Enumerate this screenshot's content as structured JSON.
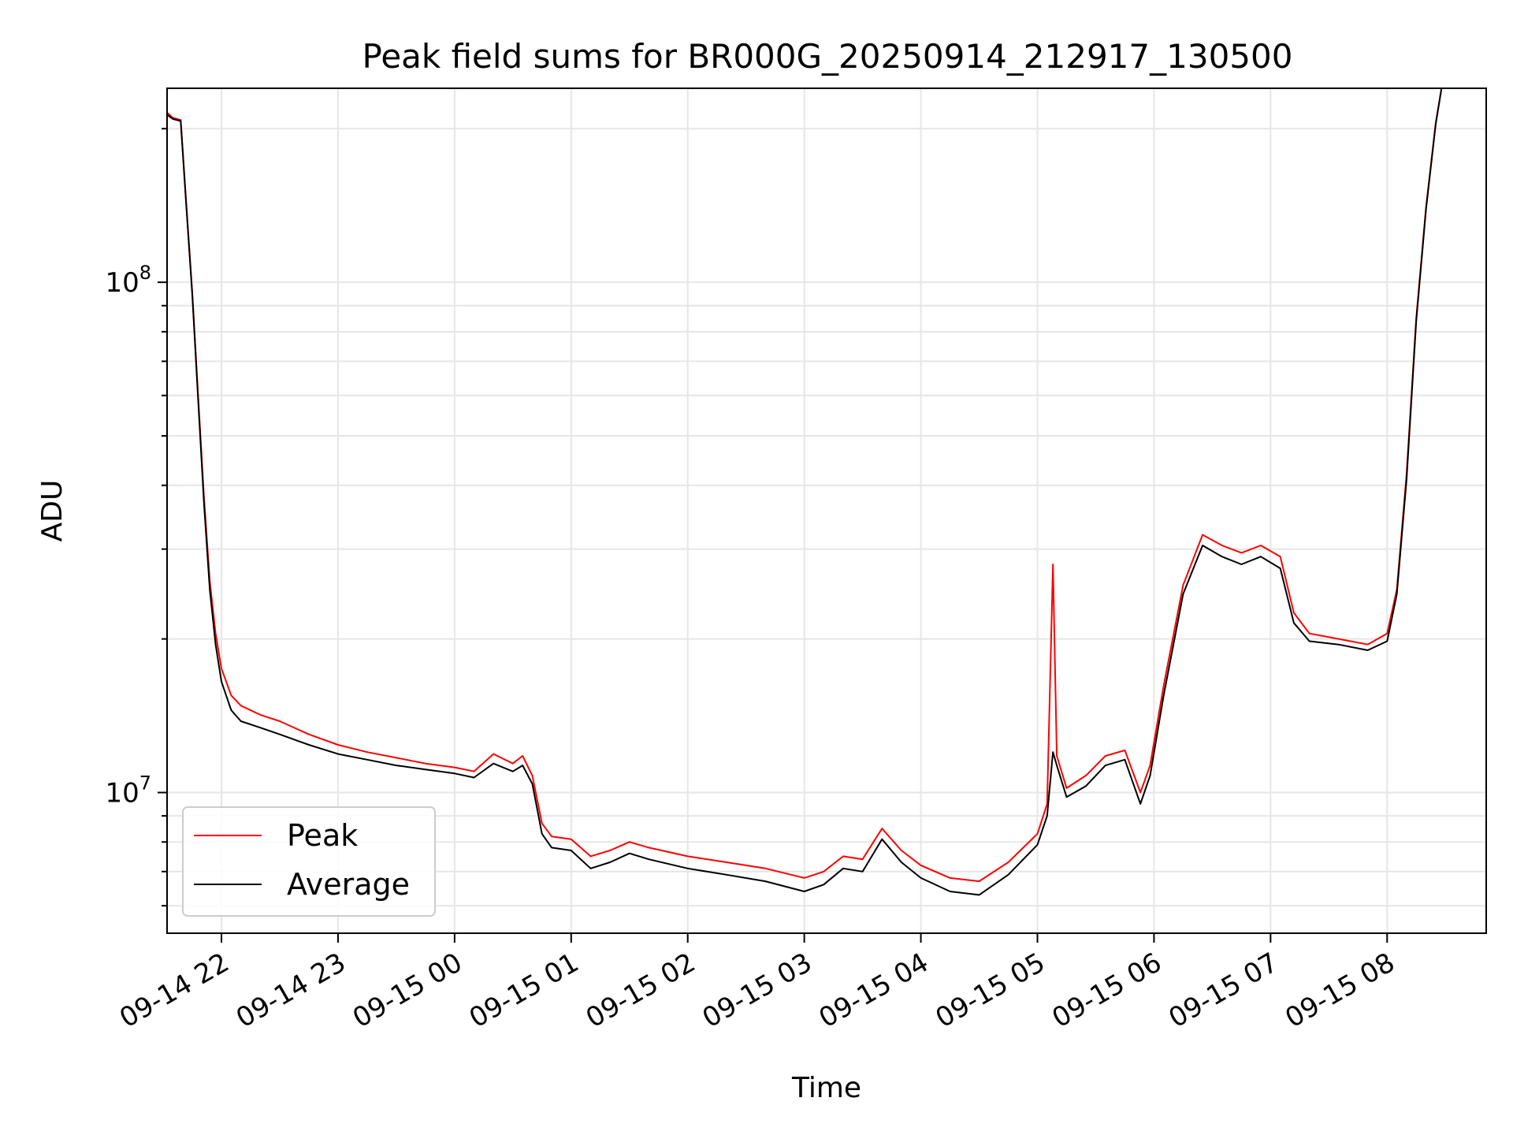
{
  "chart_data": {
    "type": "line",
    "title": "Peak field sums for BR000G_20250914_212917_130500",
    "xlabel": "Time",
    "ylabel": "ADU",
    "y_scale": "log",
    "ylim": [
      5300000,
      240000000
    ],
    "xlim": [
      "2025-09-14 21:32",
      "2025-09-15 08:51"
    ],
    "x_ticks": [
      "09-14 22",
      "09-14 23",
      "09-15 00",
      "09-15 01",
      "09-15 02",
      "09-15 03",
      "09-15 04",
      "09-15 05",
      "09-15 06",
      "09-15 07",
      "09-15 08"
    ],
    "y_ticks": [
      {
        "value": 10000000,
        "label_base": "10",
        "label_exp": "7"
      },
      {
        "value": 100000000,
        "label_base": "10",
        "label_exp": "8"
      }
    ],
    "grid": true,
    "legend_position": "lower-left",
    "series": [
      {
        "name": "Peak",
        "color": "#ff0000",
        "points": [
          [
            "2025-09-14 21:32",
            215000000
          ],
          [
            "2025-09-14 21:35",
            210000000
          ],
          [
            "2025-09-14 21:39",
            208000000
          ],
          [
            "2025-09-14 21:42",
            140000000
          ],
          [
            "2025-09-14 21:45",
            95000000
          ],
          [
            "2025-09-14 21:48",
            60000000
          ],
          [
            "2025-09-14 21:51",
            38000000
          ],
          [
            "2025-09-14 21:54",
            26000000
          ],
          [
            "2025-09-14 21:57",
            20500000
          ],
          [
            "2025-09-14 22:00",
            17500000
          ],
          [
            "2025-09-14 22:05",
            15500000
          ],
          [
            "2025-09-14 22:10",
            14800000
          ],
          [
            "2025-09-14 22:20",
            14200000
          ],
          [
            "2025-09-14 22:30",
            13800000
          ],
          [
            "2025-09-14 22:45",
            13000000
          ],
          [
            "2025-09-14 23:00",
            12400000
          ],
          [
            "2025-09-14 23:15",
            12000000
          ],
          [
            "2025-09-14 23:30",
            11700000
          ],
          [
            "2025-09-14 23:45",
            11400000
          ],
          [
            "2025-09-15 00:00",
            11200000
          ],
          [
            "2025-09-15 00:10",
            11000000
          ],
          [
            "2025-09-15 00:20",
            11900000
          ],
          [
            "2025-09-15 00:30",
            11400000
          ],
          [
            "2025-09-15 00:35",
            11800000
          ],
          [
            "2025-09-15 00:40",
            10800000
          ],
          [
            "2025-09-15 00:45",
            8700000
          ],
          [
            "2025-09-15 00:50",
            8200000
          ],
          [
            "2025-09-15 01:00",
            8100000
          ],
          [
            "2025-09-15 01:10",
            7500000
          ],
          [
            "2025-09-15 01:20",
            7700000
          ],
          [
            "2025-09-15 01:30",
            8000000
          ],
          [
            "2025-09-15 01:40",
            7800000
          ],
          [
            "2025-09-15 02:00",
            7500000
          ],
          [
            "2025-09-15 02:20",
            7300000
          ],
          [
            "2025-09-15 02:40",
            7100000
          ],
          [
            "2025-09-15 03:00",
            6800000
          ],
          [
            "2025-09-15 03:10",
            7000000
          ],
          [
            "2025-09-15 03:20",
            7500000
          ],
          [
            "2025-09-15 03:30",
            7400000
          ],
          [
            "2025-09-15 03:40",
            8500000
          ],
          [
            "2025-09-15 03:50",
            7700000
          ],
          [
            "2025-09-15 04:00",
            7200000
          ],
          [
            "2025-09-15 04:15",
            6800000
          ],
          [
            "2025-09-15 04:30",
            6700000
          ],
          [
            "2025-09-15 04:45",
            7300000
          ],
          [
            "2025-09-15 05:00",
            8300000
          ],
          [
            "2025-09-15 05:05",
            9500000
          ],
          [
            "2025-09-15 05:08",
            28000000
          ],
          [
            "2025-09-15 05:10",
            11800000
          ],
          [
            "2025-09-15 05:15",
            10200000
          ],
          [
            "2025-09-15 05:25",
            10800000
          ],
          [
            "2025-09-15 05:35",
            11800000
          ],
          [
            "2025-09-15 05:45",
            12100000
          ],
          [
            "2025-09-15 05:53",
            10000000
          ],
          [
            "2025-09-15 05:58",
            11300000
          ],
          [
            "2025-09-15 06:05",
            16200000
          ],
          [
            "2025-09-15 06:15",
            25500000
          ],
          [
            "2025-09-15 06:25",
            32000000
          ],
          [
            "2025-09-15 06:35",
            30500000
          ],
          [
            "2025-09-15 06:45",
            29500000
          ],
          [
            "2025-09-15 06:55",
            30500000
          ],
          [
            "2025-09-15 07:05",
            29000000
          ],
          [
            "2025-09-15 07:12",
            22500000
          ],
          [
            "2025-09-15 07:20",
            20500000
          ],
          [
            "2025-09-15 07:35",
            20000000
          ],
          [
            "2025-09-15 07:50",
            19500000
          ],
          [
            "2025-09-15 08:00",
            20500000
          ],
          [
            "2025-09-15 08:05",
            25000000
          ],
          [
            "2025-09-15 08:10",
            42000000
          ],
          [
            "2025-09-15 08:15",
            85000000
          ],
          [
            "2025-09-15 08:20",
            140000000
          ],
          [
            "2025-09-15 08:25",
            205000000
          ],
          [
            "2025-09-15 08:28",
            240000000
          ]
        ]
      },
      {
        "name": "Average",
        "color": "#000000",
        "points": [
          [
            "2025-09-14 21:32",
            213000000
          ],
          [
            "2025-09-14 21:35",
            209000000
          ],
          [
            "2025-09-14 21:39",
            207000000
          ],
          [
            "2025-09-14 21:42",
            139000000
          ],
          [
            "2025-09-14 21:45",
            94000000
          ],
          [
            "2025-09-14 21:48",
            59000000
          ],
          [
            "2025-09-14 21:51",
            37000000
          ],
          [
            "2025-09-14 21:54",
            25000000
          ],
          [
            "2025-09-14 21:57",
            19500000
          ],
          [
            "2025-09-14 22:00",
            16500000
          ],
          [
            "2025-09-14 22:05",
            14500000
          ],
          [
            "2025-09-14 22:10",
            13800000
          ],
          [
            "2025-09-14 22:20",
            13400000
          ],
          [
            "2025-09-14 22:30",
            13000000
          ],
          [
            "2025-09-14 22:45",
            12400000
          ],
          [
            "2025-09-14 23:00",
            11900000
          ],
          [
            "2025-09-14 23:15",
            11600000
          ],
          [
            "2025-09-14 23:30",
            11300000
          ],
          [
            "2025-09-14 23:45",
            11100000
          ],
          [
            "2025-09-15 00:00",
            10900000
          ],
          [
            "2025-09-15 00:10",
            10700000
          ],
          [
            "2025-09-15 00:20",
            11400000
          ],
          [
            "2025-09-15 00:30",
            11000000
          ],
          [
            "2025-09-15 00:35",
            11300000
          ],
          [
            "2025-09-15 00:40",
            10400000
          ],
          [
            "2025-09-15 00:45",
            8300000
          ],
          [
            "2025-09-15 00:50",
            7800000
          ],
          [
            "2025-09-15 01:00",
            7700000
          ],
          [
            "2025-09-15 01:10",
            7100000
          ],
          [
            "2025-09-15 01:20",
            7300000
          ],
          [
            "2025-09-15 01:30",
            7600000
          ],
          [
            "2025-09-15 01:40",
            7400000
          ],
          [
            "2025-09-15 02:00",
            7100000
          ],
          [
            "2025-09-15 02:20",
            6900000
          ],
          [
            "2025-09-15 02:40",
            6700000
          ],
          [
            "2025-09-15 03:00",
            6400000
          ],
          [
            "2025-09-15 03:10",
            6600000
          ],
          [
            "2025-09-15 03:20",
            7100000
          ],
          [
            "2025-09-15 03:30",
            7000000
          ],
          [
            "2025-09-15 03:40",
            8100000
          ],
          [
            "2025-09-15 03:50",
            7300000
          ],
          [
            "2025-09-15 04:00",
            6800000
          ],
          [
            "2025-09-15 04:15",
            6400000
          ],
          [
            "2025-09-15 04:30",
            6300000
          ],
          [
            "2025-09-15 04:45",
            6900000
          ],
          [
            "2025-09-15 05:00",
            7900000
          ],
          [
            "2025-09-15 05:05",
            9000000
          ],
          [
            "2025-09-15 05:08",
            12000000
          ],
          [
            "2025-09-15 05:10",
            11300000
          ],
          [
            "2025-09-15 05:15",
            9800000
          ],
          [
            "2025-09-15 05:25",
            10300000
          ],
          [
            "2025-09-15 05:35",
            11300000
          ],
          [
            "2025-09-15 05:45",
            11600000
          ],
          [
            "2025-09-15 05:53",
            9500000
          ],
          [
            "2025-09-15 05:58",
            10800000
          ],
          [
            "2025-09-15 06:05",
            15500000
          ],
          [
            "2025-09-15 06:15",
            24500000
          ],
          [
            "2025-09-15 06:25",
            30500000
          ],
          [
            "2025-09-15 06:35",
            29000000
          ],
          [
            "2025-09-15 06:45",
            28000000
          ],
          [
            "2025-09-15 06:55",
            29000000
          ],
          [
            "2025-09-15 07:05",
            27500000
          ],
          [
            "2025-09-15 07:12",
            21500000
          ],
          [
            "2025-09-15 07:20",
            19800000
          ],
          [
            "2025-09-15 07:35",
            19500000
          ],
          [
            "2025-09-15 07:50",
            19000000
          ],
          [
            "2025-09-15 08:00",
            19800000
          ],
          [
            "2025-09-15 08:05",
            24500000
          ],
          [
            "2025-09-15 08:10",
            41000000
          ],
          [
            "2025-09-15 08:15",
            84000000
          ],
          [
            "2025-09-15 08:20",
            139000000
          ],
          [
            "2025-09-15 08:25",
            204000000
          ],
          [
            "2025-09-15 08:28",
            240000000
          ]
        ]
      }
    ]
  }
}
